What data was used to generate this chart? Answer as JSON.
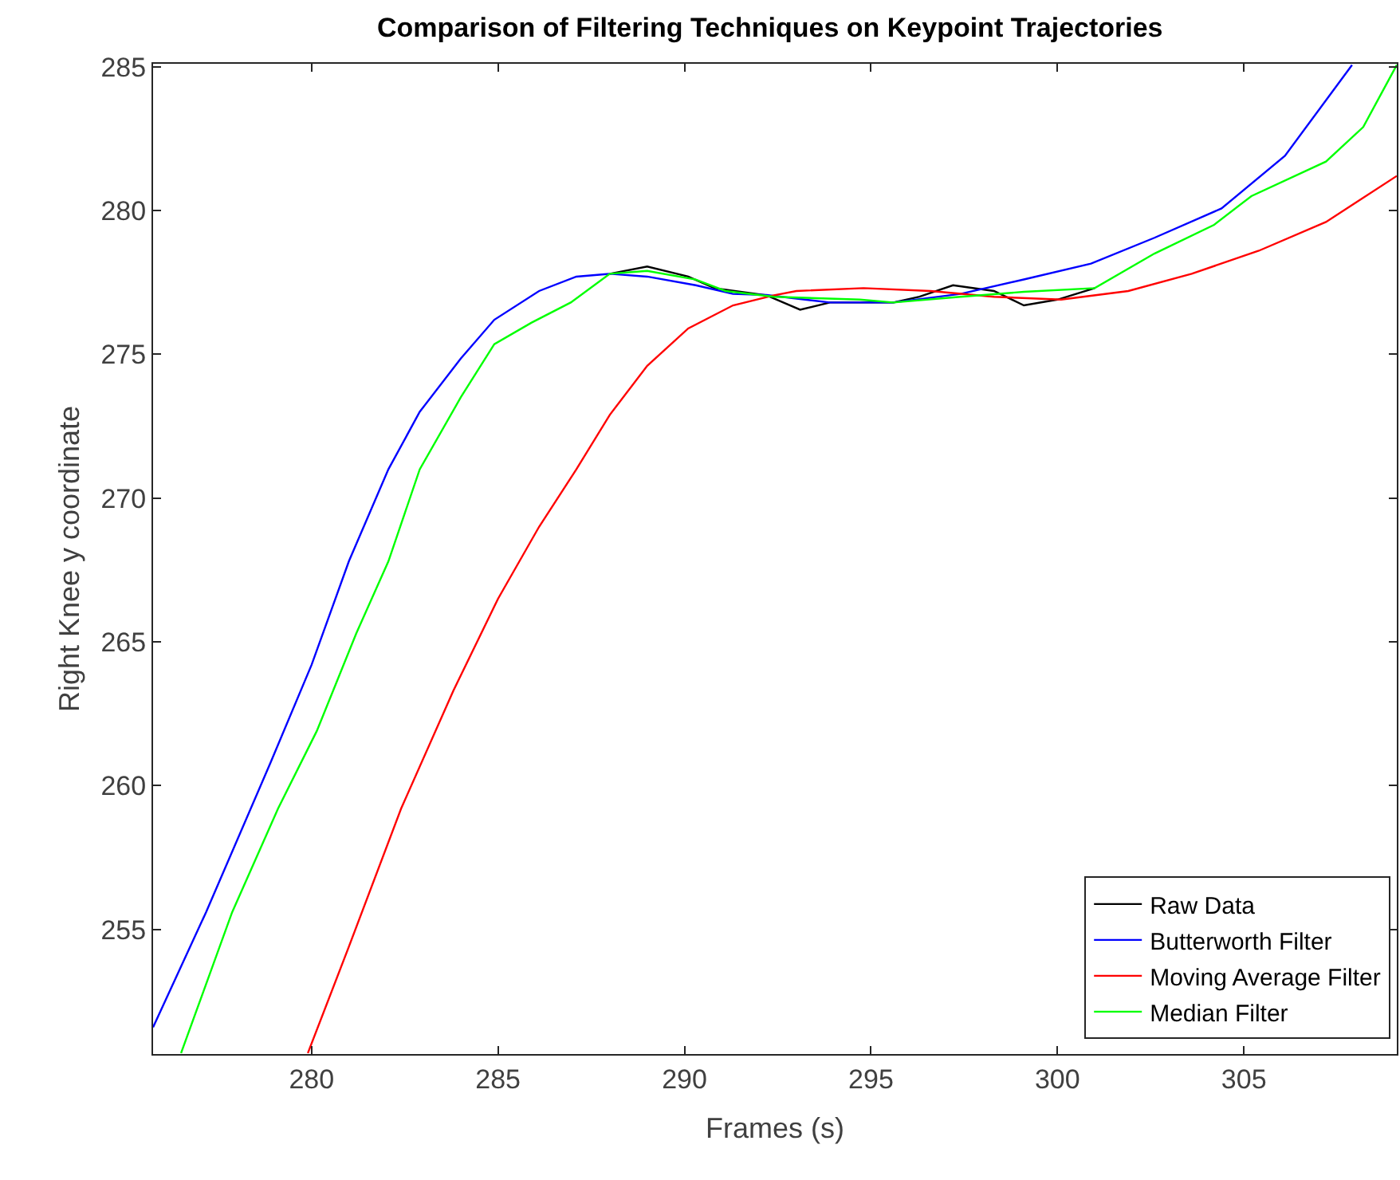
{
  "chart_data": {
    "type": "line",
    "title": "Comparison of Filtering Techniques on Keypoint Trajectories",
    "xlabel": "Frames (s)",
    "ylabel": "Right Knee y coordinate",
    "xlim": [
      275.75,
      309.1
    ],
    "xticks": [
      280,
      285,
      290,
      295,
      300,
      305
    ],
    "ylim": [
      250.67,
      285.1
    ],
    "yticks": [
      255,
      260,
      265,
      270,
      275,
      280,
      285
    ],
    "grid": false,
    "legend": "bottom right",
    "marker": "none",
    "line_style": "solid",
    "series": [
      {
        "name": "Raw Data",
        "color": "#000000",
        "x": [
          288.0,
          289.0,
          290.1,
          290.8,
          292.2,
          293.1,
          293.9,
          295.6,
          296.3,
          297.2,
          298.3,
          299.1,
          300.0,
          301.0
        ],
        "values": [
          277.8,
          278.05,
          277.7,
          277.3,
          277.05,
          276.55,
          276.8,
          276.8,
          277.0,
          277.4,
          277.2,
          276.7,
          276.9,
          277.3
        ]
      },
      {
        "name": "Butterworth Filter",
        "color": "#0000ff",
        "x": [
          275.75,
          277.17,
          278.9,
          280.0,
          281.0,
          282.06,
          282.9,
          284.0,
          284.9,
          286.1,
          287.1,
          288.0,
          289.0,
          290.3,
          291.3,
          292.2,
          293.9,
          295.6,
          297.4,
          299.1,
          300.9,
          302.6,
          304.4,
          306.1,
          307.9
        ],
        "values": [
          251.6,
          255.6,
          260.8,
          264.2,
          267.8,
          271.0,
          273.0,
          274.85,
          276.2,
          277.2,
          277.7,
          277.8,
          277.7,
          277.4,
          277.1,
          277.06,
          276.8,
          276.8,
          277.1,
          277.6,
          278.15,
          279.05,
          280.07,
          281.9,
          285.06
        ]
      },
      {
        "name": "Moving Average Filter",
        "color": "#ff0000",
        "x": [
          279.9,
          281.0,
          282.4,
          283.8,
          285.0,
          286.1,
          287.1,
          288.0,
          289.0,
          290.1,
          291.3,
          292.4,
          293.0,
          294.8,
          296.6,
          298.3,
          300.1,
          301.9,
          303.6,
          305.4,
          307.2,
          309.1
        ],
        "values": [
          250.7,
          254.4,
          259.2,
          263.3,
          266.5,
          269.0,
          271.0,
          272.9,
          274.6,
          275.9,
          276.7,
          277.05,
          277.2,
          277.3,
          277.2,
          277.0,
          276.9,
          277.2,
          277.8,
          278.6,
          279.6,
          281.2
        ]
      },
      {
        "name": "Median Filter",
        "color": "#00ff00",
        "x": [
          276.5,
          277.87,
          279.1,
          280.14,
          281.2,
          282.06,
          282.9,
          284.0,
          284.9,
          285.9,
          286.95,
          288.0,
          289.0,
          290.3,
          291.1,
          292.4,
          294.7,
          295.6,
          297.4,
          299.1,
          301.0,
          302.6,
          304.2,
          305.2,
          307.2,
          308.2,
          309.1
        ],
        "values": [
          250.7,
          255.6,
          259.2,
          261.9,
          265.3,
          267.8,
          271.0,
          273.5,
          275.35,
          276.1,
          276.8,
          277.8,
          277.9,
          277.6,
          277.2,
          277.0,
          276.9,
          276.8,
          277.0,
          277.17,
          277.3,
          278.5,
          279.5,
          280.5,
          281.7,
          282.9,
          285.06
        ]
      }
    ]
  }
}
